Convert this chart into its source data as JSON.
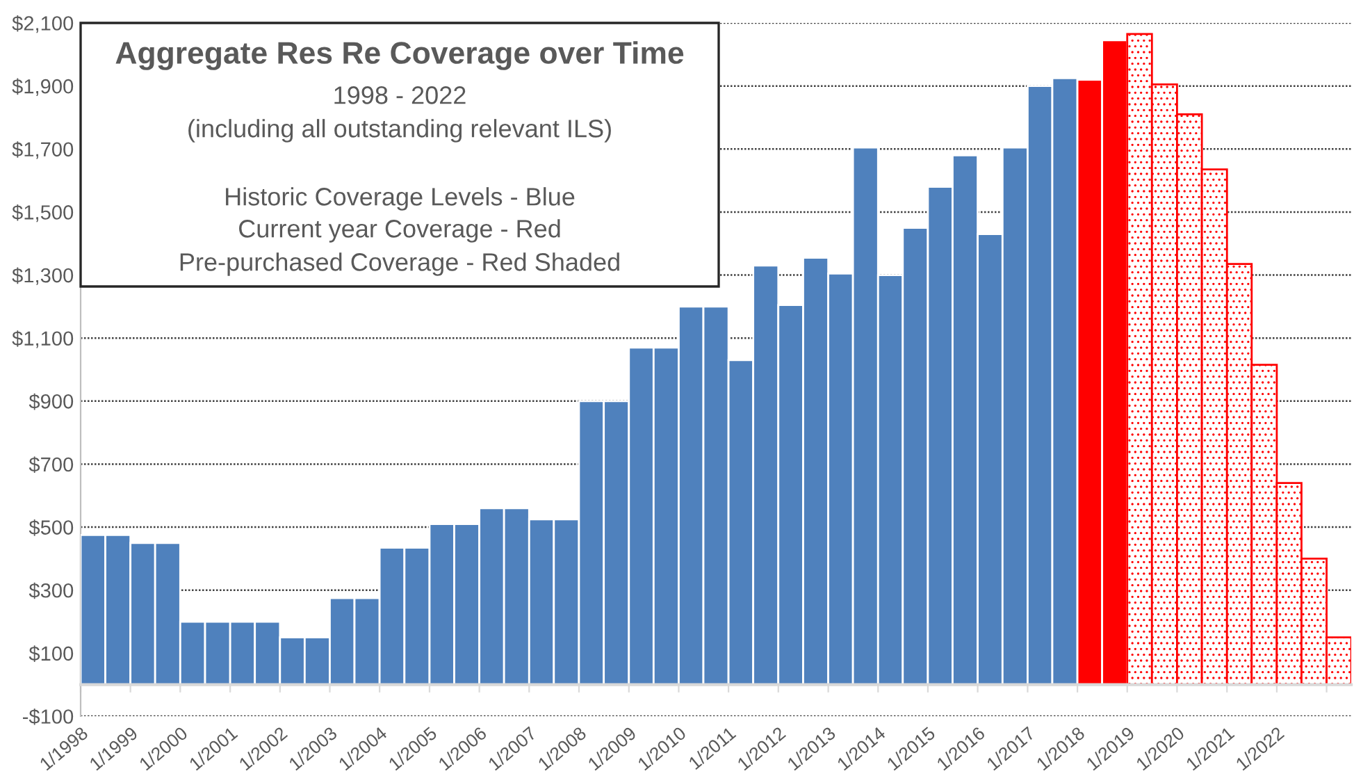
{
  "chart_data": {
    "type": "bar",
    "title": "Aggregate Res Re Coverage over Time",
    "subtitle": "1998 - 2022",
    "annotations": [
      "(including all outstanding relevant ILS)",
      "Historic Coverage Levels - Blue",
      "Current year Coverage - Red",
      "Pre-purchased Coverage - Red Shaded"
    ],
    "x": [
      "1998-01",
      "1998-07",
      "1999-01",
      "1999-07",
      "2000-01",
      "2000-07",
      "2001-01",
      "2001-07",
      "2002-01",
      "2002-07",
      "2003-01",
      "2003-07",
      "2004-01",
      "2004-07",
      "2005-01",
      "2005-07",
      "2006-01",
      "2006-07",
      "2007-01",
      "2007-07",
      "2008-01",
      "2008-07",
      "2009-01",
      "2009-07",
      "2010-01",
      "2010-07",
      "2011-01",
      "2011-07",
      "2012-01",
      "2012-07",
      "2013-01",
      "2013-07",
      "2014-01",
      "2014-07",
      "2015-01",
      "2015-07",
      "2016-01",
      "2016-07",
      "2017-01",
      "2017-07",
      "2018-01",
      "2018-07",
      "2019-01",
      "2019-07",
      "2020-01",
      "2020-07",
      "2021-01",
      "2021-07",
      "2022-01",
      "2022-07",
      "2023-01"
    ],
    "series": [
      {
        "color": "#4f81bd",
        "values": [
          475,
          475,
          450,
          450,
          200,
          200,
          200,
          200,
          150,
          150,
          275,
          275,
          435,
          435,
          510,
          510,
          560,
          560,
          525,
          525,
          900,
          900,
          1070,
          1070,
          1200,
          1200,
          1030,
          1330,
          1205,
          1355,
          1305,
          1705,
          1300,
          1450,
          1580,
          1680,
          1430,
          1705,
          1900,
          1925,
          null,
          null,
          null,
          null,
          null,
          null,
          null,
          null,
          null,
          null,
          null
        ]
      },
      {
        "color": "#ff0000",
        "values": [
          null,
          null,
          null,
          null,
          null,
          null,
          null,
          null,
          null,
          null,
          null,
          null,
          null,
          null,
          null,
          null,
          null,
          null,
          null,
          null,
          null,
          null,
          null,
          null,
          null,
          null,
          null,
          null,
          null,
          null,
          null,
          null,
          null,
          null,
          null,
          null,
          null,
          null,
          null,
          null,
          1920,
          2045,
          null,
          null,
          null,
          null,
          null,
          null,
          null,
          null,
          null
        ]
      },
      {
        "color": "#ff0000",
        "values": [
          null,
          null,
          null,
          null,
          null,
          null,
          null,
          null,
          null,
          null,
          null,
          null,
          null,
          null,
          null,
          null,
          null,
          null,
          null,
          null,
          null,
          null,
          null,
          null,
          null,
          null,
          null,
          null,
          null,
          null,
          null,
          null,
          null,
          null,
          null,
          null,
          null,
          null,
          null,
          null,
          null,
          null,
          2065,
          1905,
          1810,
          1635,
          1335,
          1015,
          640,
          400,
          150
        ]
      }
    ],
    "xlim": [
      "1998-01",
      "2023-07"
    ],
    "xticks": [
      {
        "value": "1998-01",
        "label": "1/1998"
      },
      {
        "value": "1999-01",
        "label": "1/1999"
      },
      {
        "value": "2000-01",
        "label": "1/2000"
      },
      {
        "value": "2001-01",
        "label": "1/2001"
      },
      {
        "value": "2002-01",
        "label": "1/2002"
      },
      {
        "value": "2003-01",
        "label": "1/2003"
      },
      {
        "value": "2004-01",
        "label": "1/2004"
      },
      {
        "value": "2005-01",
        "label": "1/2005"
      },
      {
        "value": "2006-01",
        "label": "1/2006"
      },
      {
        "value": "2007-01",
        "label": "1/2007"
      },
      {
        "value": "2008-01",
        "label": "1/2008"
      },
      {
        "value": "2009-01",
        "label": "1/2009"
      },
      {
        "value": "2010-01",
        "label": "1/2010"
      },
      {
        "value": "2011-01",
        "label": "1/2011"
      },
      {
        "value": "2012-01",
        "label": "1/2012"
      },
      {
        "value": "2013-01",
        "label": "1/2013"
      },
      {
        "value": "2014-01",
        "label": "1/2014"
      },
      {
        "value": "2015-01",
        "label": "1/2015"
      },
      {
        "value": "2016-01",
        "label": "1/2016"
      },
      {
        "value": "2017-01",
        "label": "1/2017"
      },
      {
        "value": "2018-01",
        "label": "1/2018"
      },
      {
        "value": "2019-01",
        "label": "1/2019"
      },
      {
        "value": "2020-01",
        "label": "1/2020"
      },
      {
        "value": "2021-01",
        "label": "1/2021"
      },
      {
        "value": "2022-01",
        "label": "1/2022"
      },
      {
        "value": "2023-01",
        "label": null
      }
    ],
    "ylim": [
      -100,
      2100
    ],
    "yticks": [
      {
        "value": -100,
        "label": "-$100"
      },
      {
        "value": 100,
        "label": "$100"
      },
      {
        "value": 300,
        "label": "$300"
      },
      {
        "value": 500,
        "label": "$500"
      },
      {
        "value": 700,
        "label": "$700"
      },
      {
        "value": 900,
        "label": "$900"
      },
      {
        "value": 1100,
        "label": "$1,100"
      },
      {
        "value": 1300,
        "label": "$1,300"
      },
      {
        "value": 1500,
        "label": "$1,500"
      },
      {
        "value": 1700,
        "label": "$1,700"
      },
      {
        "value": 1900,
        "label": "$1,900"
      },
      {
        "value": 2100,
        "label": "$2,100"
      }
    ],
    "grid": "y"
  }
}
